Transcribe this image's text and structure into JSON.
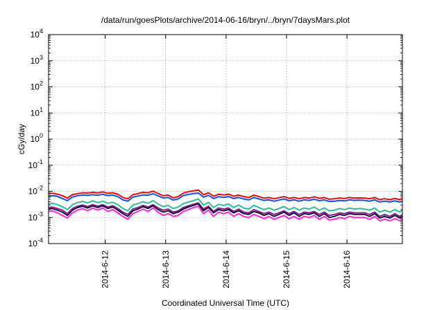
{
  "chart_data": {
    "type": "line",
    "title": "/data/run/goesPlots/archive/2014-06-16/bryn/../bryn/7daysMars.plot",
    "xlabel": "Coordinated Universal Time (UTC)",
    "ylabel": "cGy/day",
    "y_scale": "log",
    "ylim": [
      0.0001,
      10000
    ],
    "y_ticks": [
      {
        "value": 0.0001,
        "base": "10",
        "exp": "-4"
      },
      {
        "value": 0.001,
        "base": "10",
        "exp": "-3"
      },
      {
        "value": 0.01,
        "base": "10",
        "exp": "-2"
      },
      {
        "value": 0.1,
        "base": "10",
        "exp": "-1"
      },
      {
        "value": 1,
        "base": "10",
        "exp": "0"
      },
      {
        "value": 10,
        "base": "10",
        "exp": "1"
      },
      {
        "value": 100,
        "base": "10",
        "exp": "2"
      },
      {
        "value": 1000,
        "base": "10",
        "exp": "3"
      },
      {
        "value": 10000,
        "base": "10",
        "exp": "4"
      }
    ],
    "x_unit": "days",
    "xlim": [
      "2014-06-11T01:30",
      "2014-06-16T22:00"
    ],
    "x_ticks": [
      {
        "date": "2014-06-12T00:00",
        "label": "2014-6-12"
      },
      {
        "date": "2014-06-13T00:00",
        "label": "2014-6-13"
      },
      {
        "date": "2014-06-14T00:00",
        "label": "2014-6-14"
      },
      {
        "date": "2014-06-15T00:00",
        "label": "2014-6-15"
      },
      {
        "date": "2014-06-16T00:00",
        "label": "2014-6-16"
      }
    ],
    "grid": true,
    "legend": "none",
    "x": [
      "2014-06-11T01:30",
      "2014-06-11T03:00",
      "2014-06-11T05:00",
      "2014-06-11T07:00",
      "2014-06-11T09:00",
      "2014-06-11T11:00",
      "2014-06-11T13:00",
      "2014-06-11T15:00",
      "2014-06-11T17:00",
      "2014-06-11T19:00",
      "2014-06-11T21:00",
      "2014-06-11T23:00",
      "2014-06-12T01:00",
      "2014-06-12T03:00",
      "2014-06-12T05:00",
      "2014-06-12T07:00",
      "2014-06-12T09:00",
      "2014-06-12T11:00",
      "2014-06-12T13:00",
      "2014-06-12T15:00",
      "2014-06-12T17:00",
      "2014-06-12T19:00",
      "2014-06-12T21:00",
      "2014-06-12T23:00",
      "2014-06-13T01:00",
      "2014-06-13T03:00",
      "2014-06-13T05:00",
      "2014-06-13T07:00",
      "2014-06-13T09:00",
      "2014-06-13T11:00",
      "2014-06-13T13:00",
      "2014-06-13T15:00",
      "2014-06-13T17:00",
      "2014-06-13T19:00",
      "2014-06-13T21:00",
      "2014-06-13T23:00",
      "2014-06-14T01:00",
      "2014-06-14T03:00",
      "2014-06-14T05:00",
      "2014-06-14T07:00",
      "2014-06-14T09:00",
      "2014-06-14T11:00",
      "2014-06-14T13:00",
      "2014-06-14T15:00",
      "2014-06-14T17:00",
      "2014-06-14T19:00",
      "2014-06-14T21:00",
      "2014-06-14T23:00",
      "2014-06-15T01:00",
      "2014-06-15T03:00",
      "2014-06-15T05:00",
      "2014-06-15T07:00",
      "2014-06-15T09:00",
      "2014-06-15T11:00",
      "2014-06-15T13:00",
      "2014-06-15T15:00",
      "2014-06-15T17:00",
      "2014-06-15T19:00",
      "2014-06-15T21:00",
      "2014-06-15T23:00",
      "2014-06-16T01:00",
      "2014-06-16T03:00",
      "2014-06-16T05:00",
      "2014-06-16T07:00",
      "2014-06-16T09:00",
      "2014-06-16T11:00",
      "2014-06-16T13:00",
      "2014-06-16T15:00",
      "2014-06-16T17:00",
      "2014-06-16T19:00",
      "2014-06-16T21:00",
      "2014-06-16T22:00"
    ],
    "series": [
      {
        "color": "#ff0000",
        "values": [
          0.008,
          0.0085,
          0.0078,
          0.0068,
          0.0055,
          0.0075,
          0.0082,
          0.0088,
          0.0086,
          0.0092,
          0.0087,
          0.0095,
          0.0084,
          0.0088,
          0.0078,
          0.0058,
          0.0052,
          0.0074,
          0.0082,
          0.0092,
          0.0088,
          0.0102,
          0.0083,
          0.0068,
          0.0072,
          0.0056,
          0.0063,
          0.0085,
          0.0097,
          0.0105,
          0.0112,
          0.0074,
          0.0088,
          0.0065,
          0.0077,
          0.0073,
          0.0078,
          0.0065,
          0.0072,
          0.0063,
          0.0058,
          0.0072,
          0.0063,
          0.0055,
          0.0058,
          0.0052,
          0.0057,
          0.0063,
          0.0054,
          0.0058,
          0.0052,
          0.0058,
          0.0055,
          0.0062,
          0.0054,
          0.0058,
          0.005,
          0.0052,
          0.0056,
          0.0053,
          0.0058,
          0.0055,
          0.0056,
          0.0055,
          0.0052,
          0.0058,
          0.0048,
          0.0052,
          0.0048,
          0.0053,
          0.0048,
          0.0053
        ]
      },
      {
        "color": "#0055ff",
        "values": [
          0.0062,
          0.0068,
          0.0064,
          0.0053,
          0.0044,
          0.0061,
          0.0068,
          0.0072,
          0.007,
          0.0074,
          0.0071,
          0.0077,
          0.0069,
          0.0072,
          0.0063,
          0.0047,
          0.0042,
          0.006,
          0.0066,
          0.0073,
          0.0071,
          0.0081,
          0.0067,
          0.0056,
          0.0058,
          0.0046,
          0.0051,
          0.0069,
          0.0076,
          0.0082,
          0.0086,
          0.006,
          0.007,
          0.0053,
          0.0062,
          0.0059,
          0.0063,
          0.0053,
          0.0058,
          0.0051,
          0.0047,
          0.0058,
          0.0051,
          0.0045,
          0.0047,
          0.0042,
          0.0046,
          0.0051,
          0.0044,
          0.0047,
          0.0042,
          0.0047,
          0.0045,
          0.005,
          0.0044,
          0.0047,
          0.0041,
          0.0042,
          0.0045,
          0.0043,
          0.0047,
          0.0045,
          0.0046,
          0.0045,
          0.0042,
          0.0047,
          0.0039,
          0.0042,
          0.0039,
          0.0043,
          0.0039,
          0.0042
        ]
      },
      {
        "color": "#22c19a",
        "values": [
          0.0033,
          0.0035,
          0.0031,
          0.0026,
          0.002,
          0.0031,
          0.0037,
          0.0041,
          0.0036,
          0.0043,
          0.0037,
          0.0042,
          0.0035,
          0.0038,
          0.0031,
          0.0022,
          0.0018,
          0.003,
          0.0034,
          0.004,
          0.0035,
          0.0044,
          0.0033,
          0.0026,
          0.0029,
          0.0022,
          0.0025,
          0.0034,
          0.0039,
          0.0044,
          0.0051,
          0.003,
          0.0038,
          0.0024,
          0.0032,
          0.0029,
          0.0033,
          0.0024,
          0.003,
          0.0023,
          0.0021,
          0.0029,
          0.0024,
          0.002,
          0.0023,
          0.0019,
          0.0022,
          0.0026,
          0.002,
          0.0024,
          0.0019,
          0.0023,
          0.0021,
          0.0025,
          0.0019,
          0.0023,
          0.0018,
          0.0019,
          0.0022,
          0.002,
          0.0023,
          0.0021,
          0.0022,
          0.0021,
          0.0019,
          0.0023,
          0.0016,
          0.0019,
          0.0016,
          0.002,
          0.0016,
          0.0019
        ]
      },
      {
        "color": "#8a1a9a",
        "values": [
          0.0024,
          0.0025,
          0.0022,
          0.0019,
          0.0014,
          0.0022,
          0.0027,
          0.003,
          0.0026,
          0.0031,
          0.0027,
          0.0031,
          0.0025,
          0.0028,
          0.0022,
          0.0016,
          0.0013,
          0.0021,
          0.0024,
          0.0029,
          0.0025,
          0.0031,
          0.0023,
          0.0019,
          0.0021,
          0.0016,
          0.0018,
          0.0024,
          0.0028,
          0.0032,
          0.0036,
          0.0021,
          0.0027,
          0.0017,
          0.0023,
          0.0021,
          0.0023,
          0.0017,
          0.0021,
          0.0016,
          0.0015,
          0.002,
          0.0017,
          0.0014,
          0.0016,
          0.0013,
          0.0015,
          0.0018,
          0.0014,
          0.0017,
          0.0013,
          0.0016,
          0.0015,
          0.0017,
          0.0013,
          0.0016,
          0.0012,
          0.0013,
          0.0015,
          0.0014,
          0.0016,
          0.0015,
          0.0015,
          0.0015,
          0.0013,
          0.0016,
          0.0011,
          0.0013,
          0.0011,
          0.0014,
          0.0011,
          0.0013
        ]
      },
      {
        "color": "#111133",
        "values": [
          0.0021,
          0.0022,
          0.0019,
          0.0016,
          0.0012,
          0.0019,
          0.0024,
          0.0027,
          0.0023,
          0.0028,
          0.0024,
          0.0028,
          0.0022,
          0.0025,
          0.0019,
          0.0014,
          0.0011,
          0.0018,
          0.0021,
          0.0026,
          0.0022,
          0.0028,
          0.002,
          0.0016,
          0.0018,
          0.0014,
          0.0016,
          0.0021,
          0.0025,
          0.0029,
          0.0033,
          0.0018,
          0.0024,
          0.0015,
          0.002,
          0.0018,
          0.002,
          0.0015,
          0.0018,
          0.0014,
          0.0013,
          0.0017,
          0.0015,
          0.0012,
          0.0014,
          0.0011,
          0.0013,
          0.0016,
          0.0012,
          0.0015,
          0.0011,
          0.0014,
          0.0013,
          0.0015,
          0.0011,
          0.0014,
          0.001,
          0.0011,
          0.0013,
          0.0012,
          0.0014,
          0.0013,
          0.0013,
          0.0013,
          0.0011,
          0.0014,
          0.00095,
          0.0011,
          0.00095,
          0.0012,
          0.00095,
          0.0011
        ]
      },
      {
        "color": "#ff22dd",
        "values": [
          0.0017,
          0.0018,
          0.0015,
          0.0012,
          0.00095,
          0.0015,
          0.0019,
          0.0022,
          0.0018,
          0.0023,
          0.0019,
          0.0023,
          0.0017,
          0.002,
          0.0015,
          0.0011,
          0.00085,
          0.0014,
          0.0017,
          0.0021,
          0.0017,
          0.0023,
          0.0016,
          0.0012,
          0.0014,
          0.0011,
          0.0012,
          0.0017,
          0.002,
          0.0024,
          0.0027,
          0.0014,
          0.0019,
          0.0011,
          0.0016,
          0.0014,
          0.0016,
          0.0011,
          0.0014,
          0.0011,
          0.001,
          0.0013,
          0.0011,
          0.0009,
          0.0011,
          0.00085,
          0.001,
          0.0012,
          0.0009,
          0.0011,
          0.00085,
          0.0011,
          0.001,
          0.0012,
          0.00085,
          0.0011,
          0.0008,
          0.00085,
          0.001,
          0.0009,
          0.0011,
          0.001,
          0.001,
          0.001,
          0.00085,
          0.0011,
          0.00075,
          0.00085,
          0.00075,
          0.0009,
          0.00075,
          0.00085
        ]
      }
    ]
  }
}
